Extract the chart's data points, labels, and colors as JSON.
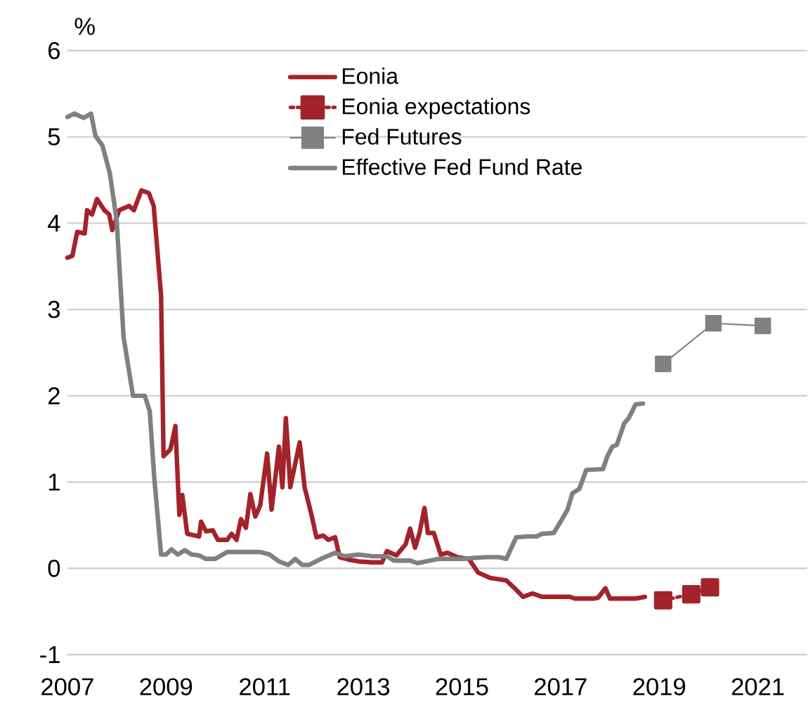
{
  "chart_data": {
    "type": "line",
    "ylabel": "%",
    "xlim": [
      2007,
      2022
    ],
    "ylim": [
      -1,
      6
    ],
    "xticks": [
      2007,
      2009,
      2011,
      2013,
      2015,
      2017,
      2019,
      2021
    ],
    "yticks": [
      -1,
      0,
      1,
      2,
      3,
      4,
      5,
      6
    ],
    "grid": "y",
    "legend": "top",
    "series": [
      {
        "name": "Eonia",
        "color": "#a3232b",
        "marker": "none",
        "line_style": "solid",
        "x": [
          2007.0,
          2007.1,
          2007.2,
          2007.35,
          2007.4,
          2007.5,
          2007.6,
          2007.75,
          2007.85,
          2007.91,
          2008.05,
          2008.25,
          2008.35,
          2008.5,
          2008.65,
          2008.75,
          2008.9,
          2008.95,
          2009.09,
          2009.19,
          2009.27,
          2009.33,
          2009.43,
          2009.67,
          2009.71,
          2009.81,
          2009.95,
          2010.05,
          2010.24,
          2010.33,
          2010.43,
          2010.52,
          2010.62,
          2010.71,
          2010.81,
          2010.91,
          2011.05,
          2011.14,
          2011.29,
          2011.36,
          2011.43,
          2011.52,
          2011.71,
          2011.81,
          2011.95,
          2012.05,
          2012.19,
          2012.29,
          2012.43,
          2012.52,
          2012.71,
          2012.91,
          2013.19,
          2013.38,
          2013.48,
          2013.67,
          2013.86,
          2013.95,
          2014.05,
          2014.14,
          2014.24,
          2014.31,
          2014.43,
          2014.57,
          2014.71,
          2014.91,
          2015.14,
          2015.33,
          2015.57,
          2015.9,
          2016.05,
          2016.24,
          2016.43,
          2016.62,
          2017.19,
          2017.29,
          2017.67,
          2017.76,
          2017.91,
          2018.0,
          2018.52,
          2018.71
        ],
        "values": [
          3.6,
          3.62,
          3.9,
          3.88,
          4.15,
          4.1,
          4.28,
          4.15,
          4.1,
          3.92,
          4.15,
          4.2,
          4.15,
          4.38,
          4.35,
          4.2,
          3.16,
          1.3,
          1.38,
          1.65,
          0.62,
          0.85,
          0.4,
          0.37,
          0.54,
          0.43,
          0.44,
          0.33,
          0.33,
          0.4,
          0.33,
          0.57,
          0.47,
          0.86,
          0.6,
          0.73,
          1.33,
          0.68,
          1.41,
          0.94,
          1.74,
          0.94,
          1.46,
          0.94,
          0.62,
          0.36,
          0.38,
          0.33,
          0.36,
          0.13,
          0.1,
          0.08,
          0.07,
          0.07,
          0.2,
          0.15,
          0.28,
          0.46,
          0.24,
          0.41,
          0.7,
          0.41,
          0.41,
          0.16,
          0.18,
          0.13,
          0.11,
          -0.05,
          -0.11,
          -0.14,
          -0.22,
          -0.33,
          -0.29,
          -0.33,
          -0.33,
          -0.35,
          -0.35,
          -0.34,
          -0.23,
          -0.35,
          -0.35,
          -0.33
        ]
      },
      {
        "name": "Eonia expectations",
        "color": "#a3232b",
        "marker": "square",
        "line_style": "dotted",
        "x": [
          2019.08,
          2019.65,
          2020.03
        ],
        "values": [
          -0.37,
          -0.3,
          -0.22
        ]
      },
      {
        "name": "Fed Futures",
        "color": "#808080",
        "marker": "square",
        "line_style": "solid",
        "x": [
          2019.08,
          2020.1,
          2021.1
        ],
        "values": [
          2.37,
          2.84,
          2.81
        ]
      },
      {
        "name": "Effective Fed Fund Rate",
        "color": "#808080",
        "marker": "none",
        "line_style": "solid",
        "x": [
          2007.0,
          2007.14,
          2007.33,
          2007.48,
          2007.57,
          2007.71,
          2007.86,
          2008.0,
          2008.1,
          2008.14,
          2008.33,
          2008.57,
          2008.67,
          2008.76,
          2008.9,
          2009.0,
          2009.11,
          2009.24,
          2009.38,
          2009.52,
          2009.67,
          2009.81,
          2010.0,
          2010.24,
          2010.91,
          2011.1,
          2011.29,
          2011.48,
          2011.62,
          2011.76,
          2011.9,
          2012.14,
          2012.43,
          2012.62,
          2012.9,
          2013.19,
          2013.48,
          2013.62,
          2013.95,
          2014.1,
          2014.52,
          2015.0,
          2015.48,
          2015.76,
          2015.9,
          2016.1,
          2016.33,
          2016.52,
          2016.62,
          2016.86,
          2017.0,
          2017.14,
          2017.24,
          2017.38,
          2017.52,
          2017.86,
          2017.95,
          2018.05,
          2018.14,
          2018.29,
          2018.38,
          2018.52,
          2018.67
        ],
        "values": [
          5.23,
          5.27,
          5.22,
          5.27,
          5.01,
          4.9,
          4.58,
          4.03,
          3.06,
          2.68,
          2.0,
          2.0,
          1.82,
          1.06,
          0.16,
          0.16,
          0.22,
          0.16,
          0.21,
          0.16,
          0.15,
          0.11,
          0.11,
          0.19,
          0.19,
          0.16,
          0.08,
          0.04,
          0.11,
          0.04,
          0.04,
          0.11,
          0.18,
          0.14,
          0.16,
          0.14,
          0.14,
          0.09,
          0.09,
          0.06,
          0.11,
          0.11,
          0.13,
          0.13,
          0.11,
          0.36,
          0.37,
          0.37,
          0.4,
          0.41,
          0.54,
          0.68,
          0.87,
          0.92,
          1.14,
          1.15,
          1.3,
          1.41,
          1.43,
          1.68,
          1.74,
          1.9,
          1.91
        ]
      }
    ]
  }
}
